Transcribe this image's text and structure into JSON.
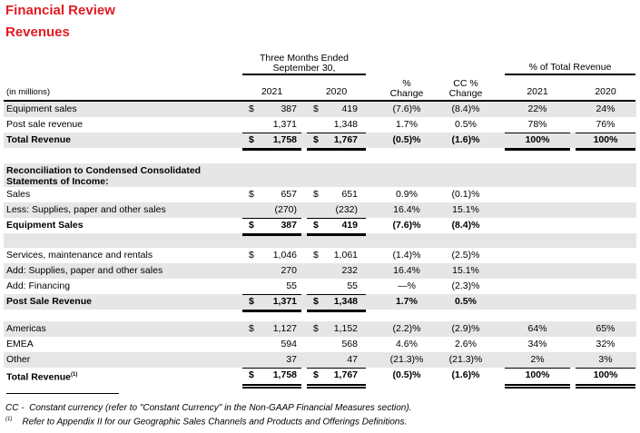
{
  "title": "Financial Review",
  "subtitle": "Revenues",
  "header": {
    "period_line1": "Three Months Ended",
    "period_line2": "September 30,",
    "pct_total": "% of Total Revenue",
    "units": "(in millions)",
    "y2021": "2021",
    "y2020": "2020",
    "chg1": "%",
    "chg2": "Change",
    "cc1": "CC %",
    "cc2": "Change",
    "p2021": "2021",
    "p2020": "2020"
  },
  "rows": [
    {
      "label": "Equipment sales",
      "d1": "$",
      "v1": "387",
      "d2": "$",
      "v2": "419",
      "chg": "(7.6)%",
      "cc": "(8.4)%",
      "p1": "22%",
      "p2": "24%"
    },
    {
      "label": "Post sale revenue",
      "v1": "1,371",
      "v2": "1,348",
      "chg": "1.7%",
      "cc": "0.5%",
      "p1": "78%",
      "p2": "76%"
    },
    {
      "label": "Total Revenue",
      "bold": true,
      "d1": "$",
      "v1": "1,758",
      "d2": "$",
      "v2": "1,767",
      "chg": "(0.5)%",
      "cc": "(1.6)%",
      "p1": "100%",
      "p2": "100%"
    },
    {
      "label": "Sales",
      "d1": "$",
      "v1": "657",
      "d2": "$",
      "v2": "651",
      "chg": "0.9%",
      "cc": "(0.1)%"
    },
    {
      "label": "Less: Supplies, paper and other sales",
      "v1": "(270)",
      "v2": "(232)",
      "chg": "16.4%",
      "cc": "15.1%"
    },
    {
      "label": "Equipment Sales",
      "bold": true,
      "d1": "$",
      "v1": "387",
      "d2": "$",
      "v2": "419",
      "chg": "(7.6)%",
      "cc": "(8.4)%"
    },
    {
      "label": "Services, maintenance and rentals",
      "d1": "$",
      "v1": "1,046",
      "d2": "$",
      "v2": "1,061",
      "chg": "(1.4)%",
      "cc": "(2.5)%"
    },
    {
      "label": "Add: Supplies, paper and other sales",
      "v1": "270",
      "v2": "232",
      "chg": "16.4%",
      "cc": "15.1%"
    },
    {
      "label": "Add: Financing",
      "v1": "55",
      "v2": "55",
      "chg": "—%",
      "cc": "(2.3)%"
    },
    {
      "label": "Post Sale Revenue",
      "bold": true,
      "d1": "$",
      "v1": "1,371",
      "d2": "$",
      "v2": "1,348",
      "chg": "1.7%",
      "cc": "0.5%"
    },
    {
      "label": "Americas",
      "d1": "$",
      "v1": "1,127",
      "d2": "$",
      "v2": "1,152",
      "chg": "(2.2)%",
      "cc": "(2.9)%",
      "p1": "64%",
      "p2": "65%"
    },
    {
      "label": "EMEA",
      "v1": "594",
      "v2": "568",
      "chg": "4.6%",
      "cc": "2.6%",
      "p1": "34%",
      "p2": "32%"
    },
    {
      "label": "Other",
      "v1": "37",
      "v2": "47",
      "chg": "(21.3)%",
      "cc": "(21.3)%",
      "p1": "2%",
      "p2": "3%"
    },
    {
      "label": "Total Revenue",
      "sup": "(1)",
      "bold": true,
      "d1": "$",
      "v1": "1,758",
      "d2": "$",
      "v2": "1,767",
      "chg": "(0.5)%",
      "cc": "(1.6)%",
      "p1": "100%",
      "p2": "100%"
    }
  ],
  "recon_header_line1": "Reconciliation to Condensed Consolidated",
  "recon_header_line2": "Statements of Income:",
  "footnotes": {
    "cc_mark": "CC -",
    "cc_text": "Constant currency (refer to \"Constant Currency\" in the Non-GAAP Financial Measures section).",
    "n1_mark": "(1)",
    "n1_text": "Refer to Appendix II for our Geographic Sales Channels and Products and Offerings Definitions."
  }
}
